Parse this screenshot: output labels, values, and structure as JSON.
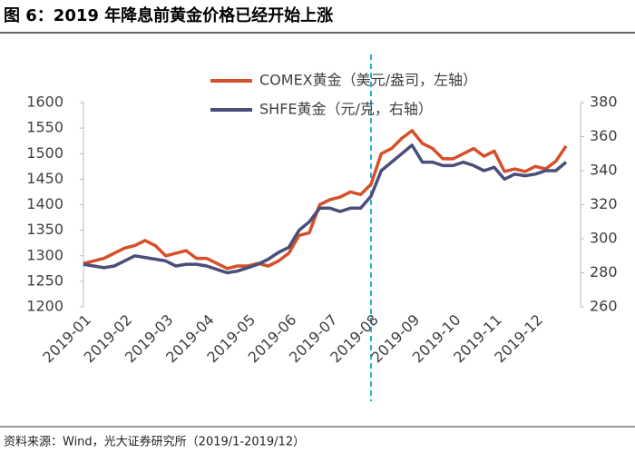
{
  "chart_data": {
    "type": "line",
    "title": "图 6：2019 年降息前黄金价格已经开始上涨",
    "source": "资料来源：Wind，光大证券研究所（2019/1-2019/12）",
    "categories": [
      "2019-01",
      null,
      null,
      null,
      "2019-02",
      null,
      null,
      null,
      "2019-03",
      null,
      null,
      null,
      "2019-04",
      null,
      null,
      null,
      "2019-05",
      null,
      null,
      null,
      "2019-06",
      null,
      null,
      null,
      "2019-07",
      null,
      null,
      null,
      "2019-08",
      null,
      null,
      null,
      "2019-09",
      null,
      null,
      null,
      "2019-10",
      null,
      null,
      null,
      "2019-11",
      null,
      null,
      null,
      "2019-12",
      null,
      null,
      null
    ],
    "series": [
      {
        "name": "COMEX黄金（美元/盎司，左轴）",
        "color": "#d4502a",
        "values": [
          1285,
          1290,
          1295,
          1305,
          1315,
          1320,
          1330,
          1320,
          1300,
          1305,
          1310,
          1295,
          1295,
          1285,
          1275,
          1280,
          1280,
          1285,
          1280,
          1290,
          1305,
          1340,
          1345,
          1400,
          1410,
          1415,
          1425,
          1420,
          1440,
          1500,
          1510,
          1530,
          1545,
          1520,
          1510,
          1490,
          1490,
          1500,
          1510,
          1495,
          1505,
          1465,
          1470,
          1465,
          1475,
          1470,
          1485,
          1515
        ]
      },
      {
        "name": "SHFE黄金（元/克，右轴）",
        "color": "#4a4e7a",
        "axis": "y2",
        "values": [
          285,
          284,
          283,
          284,
          287,
          290,
          289,
          288,
          287,
          284,
          285,
          285,
          284,
          282,
          280,
          281,
          283,
          285,
          288,
          292,
          295,
          305,
          310,
          318,
          318,
          316,
          318,
          318,
          325,
          340,
          345,
          350,
          355,
          345,
          345,
          343,
          343,
          345,
          343,
          340,
          342,
          335,
          338,
          337,
          338,
          340,
          340,
          345
        ]
      }
    ],
    "ylim": [
      1200,
      1600
    ],
    "yticks": [
      1200,
      1250,
      1300,
      1350,
      1400,
      1450,
      1500,
      1550,
      1600
    ],
    "y2lim": [
      260,
      380
    ],
    "y2ticks": [
      260,
      280,
      300,
      320,
      340,
      360,
      380
    ]
  }
}
